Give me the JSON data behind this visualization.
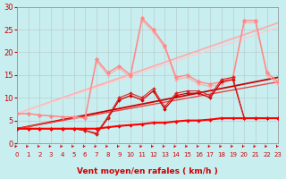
{
  "bg_color": "#c8eef0",
  "grid_color": "#aaaaaa",
  "xlabel": "Vent moyen/en rafales ( km/h )",
  "xlim": [
    0,
    23
  ],
  "ylim": [
    0,
    30
  ],
  "yticks": [
    0,
    5,
    10,
    15,
    20,
    25,
    30
  ],
  "xticks": [
    0,
    1,
    2,
    3,
    4,
    5,
    6,
    7,
    8,
    9,
    10,
    11,
    12,
    13,
    14,
    15,
    16,
    17,
    18,
    19,
    20,
    21,
    22,
    23
  ],
  "series": [
    {
      "x": [
        0,
        1,
        2,
        3,
        4,
        5,
        6,
        7,
        8,
        9,
        10,
        11,
        12,
        13,
        14,
        15,
        16,
        17,
        18,
        19,
        20,
        21,
        22,
        23
      ],
      "y": [
        6.5,
        6.5,
        6.2,
        6.0,
        5.8,
        5.8,
        5.5,
        18.0,
        15.0,
        16.5,
        14.5,
        27.0,
        24.5,
        21.0,
        14.0,
        14.5,
        13.0,
        12.5,
        13.0,
        14.0,
        26.5,
        26.5,
        15.0,
        13.0
      ],
      "color": "#ffaaaa",
      "lw": 0.8,
      "marker": "D",
      "ms": 2.0,
      "zorder": 3
    },
    {
      "x": [
        0,
        23
      ],
      "y": [
        6.5,
        26.5
      ],
      "color": "#ffaaaa",
      "lw": 1.2,
      "marker": null,
      "ms": 0,
      "zorder": 2
    },
    {
      "x": [
        0,
        23
      ],
      "y": [
        6.5,
        25.5
      ],
      "color": "#ffcccc",
      "lw": 0.9,
      "marker": null,
      "ms": 0,
      "zorder": 2
    },
    {
      "x": [
        0,
        1,
        2,
        3,
        4,
        5,
        6,
        7,
        8,
        9,
        10,
        11,
        12,
        13,
        14,
        15,
        16,
        17,
        18,
        19,
        20,
        21,
        22,
        23
      ],
      "y": [
        6.5,
        6.5,
        6.2,
        6.0,
        5.8,
        5.8,
        5.5,
        18.5,
        15.5,
        17.0,
        15.0,
        27.5,
        25.0,
        21.5,
        14.5,
        15.0,
        13.5,
        13.0,
        13.5,
        14.5,
        27.0,
        27.0,
        15.5,
        13.5
      ],
      "color": "#ff8888",
      "lw": 1.0,
      "marker": "D",
      "ms": 2.5,
      "zorder": 3
    },
    {
      "x": [
        0,
        1,
        2,
        3,
        4,
        5,
        6,
        7,
        8,
        9,
        10,
        11,
        12,
        13,
        14,
        15,
        16,
        17,
        18,
        19,
        20,
        21,
        22,
        23
      ],
      "y": [
        3.2,
        3.2,
        3.2,
        3.2,
        3.2,
        3.2,
        2.8,
        2.0,
        5.5,
        9.5,
        10.5,
        9.5,
        11.5,
        7.5,
        10.5,
        11.0,
        11.0,
        10.0,
        13.5,
        14.0,
        5.5,
        5.5,
        5.5,
        5.5
      ],
      "color": "#cc0000",
      "lw": 0.9,
      "marker": "D",
      "ms": 2.0,
      "zorder": 4
    },
    {
      "x": [
        0,
        1,
        2,
        3,
        4,
        5,
        6,
        7,
        8,
        9,
        10,
        11,
        12,
        13,
        14,
        15,
        16,
        17,
        18,
        19,
        20,
        21,
        22,
        23
      ],
      "y": [
        3.2,
        3.2,
        3.2,
        3.2,
        3.2,
        3.2,
        2.8,
        2.2,
        5.8,
        10.0,
        11.0,
        10.0,
        12.0,
        8.0,
        11.0,
        11.5,
        11.5,
        10.5,
        14.0,
        14.5,
        5.5,
        5.5,
        5.5,
        5.5
      ],
      "color": "#dd2222",
      "lw": 0.8,
      "marker": "D",
      "ms": 2.0,
      "zorder": 4
    },
    {
      "x": [
        0,
        23
      ],
      "y": [
        3.2,
        14.5
      ],
      "color": "#cc0000",
      "lw": 1.3,
      "marker": null,
      "ms": 0,
      "zorder": 2
    },
    {
      "x": [
        0,
        23
      ],
      "y": [
        3.2,
        13.5
      ],
      "color": "#ee4444",
      "lw": 1.0,
      "marker": null,
      "ms": 0,
      "zorder": 2
    },
    {
      "x": [
        0,
        1,
        2,
        3,
        4,
        5,
        6,
        7,
        8,
        9,
        10,
        11,
        12,
        13,
        14,
        15,
        16,
        17,
        18,
        19,
        20,
        21,
        22,
        23
      ],
      "y": [
        3.2,
        3.2,
        3.2,
        3.2,
        3.2,
        3.2,
        3.2,
        3.2,
        3.5,
        3.8,
        4.0,
        4.2,
        4.5,
        4.5,
        4.8,
        5.0,
        5.0,
        5.2,
        5.5,
        5.5,
        5.5,
        5.5,
        5.5,
        5.5
      ],
      "color": "#ff0000",
      "lw": 1.5,
      "marker": "D",
      "ms": 2.0,
      "zorder": 5
    }
  ],
  "arrow_color": "#cc0000",
  "xlabel_color": "#cc0000",
  "xlabel_bold": true,
  "xlabel_fontsize": 6.5,
  "ytick_fontsize": 6,
  "xtick_fontsize": 5
}
